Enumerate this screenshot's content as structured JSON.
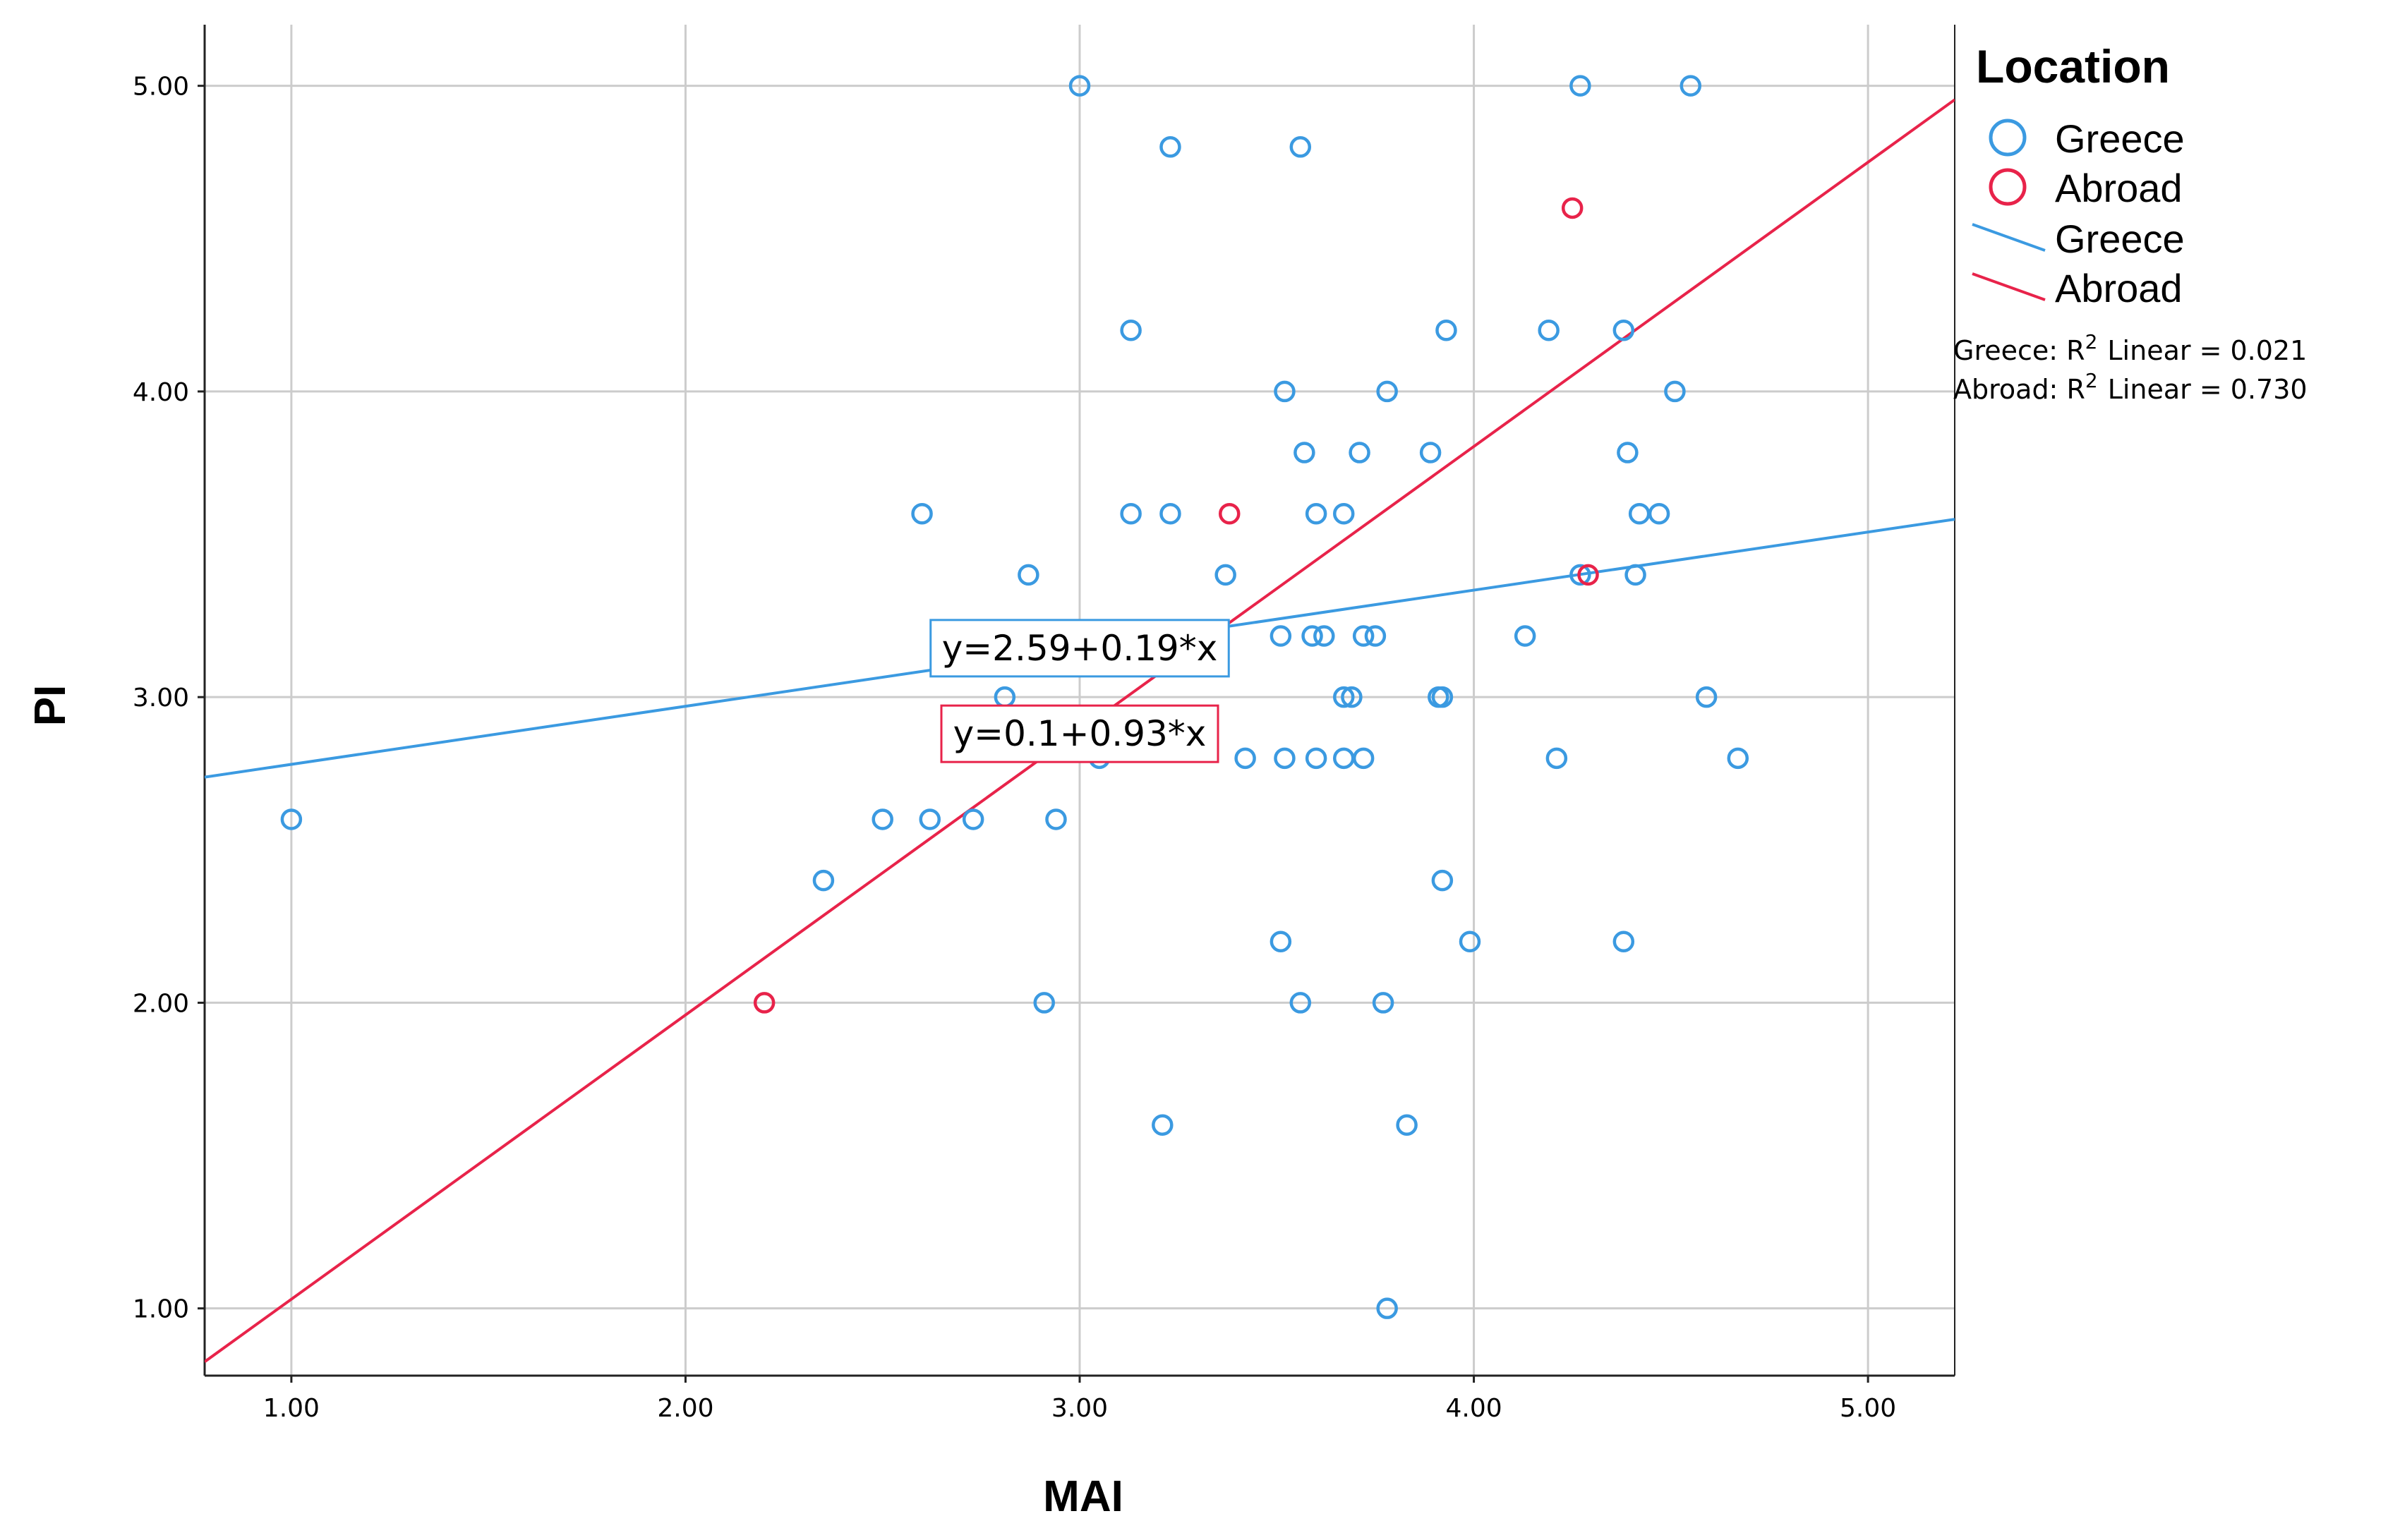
{
  "chart_data": {
    "type": "scatter",
    "xlabel": "MAI",
    "ylabel": "PI",
    "xlim": [
      0.78,
      5.22
    ],
    "ylim": [
      0.78,
      5.2
    ],
    "x_ticks": [
      1.0,
      2.0,
      3.0,
      4.0,
      5.0
    ],
    "y_ticks": [
      1.0,
      2.0,
      3.0,
      4.0,
      5.0
    ],
    "x_tick_labels": [
      "1.00",
      "2.00",
      "3.00",
      "4.00",
      "5.00"
    ],
    "y_tick_labels": [
      "1.00",
      "2.00",
      "3.00",
      "4.00",
      "5.00"
    ],
    "grid": true,
    "legend": {
      "title": "Location",
      "placement": "top-right",
      "point_labels": [
        "Greece",
        "Abroad"
      ],
      "line_labels": [
        "Greece",
        "Abroad"
      ]
    },
    "r2_labels": [
      "Greece: R",
      "Linear = 0.021",
      "Abroad: R",
      "Linear = 0.730"
    ],
    "r2_superscript": "2",
    "series": [
      {
        "name": "Greece",
        "color": "#3b9ae1",
        "points": [
          [
            1.0,
            2.6
          ],
          [
            2.35,
            2.4
          ],
          [
            2.5,
            2.6
          ],
          [
            2.6,
            3.6
          ],
          [
            2.62,
            2.6
          ],
          [
            2.73,
            2.6
          ],
          [
            2.81,
            3.0
          ],
          [
            2.87,
            3.4
          ],
          [
            2.91,
            2.0
          ],
          [
            2.94,
            2.6
          ],
          [
            3.0,
            5.0
          ],
          [
            3.05,
            2.8
          ],
          [
            3.13,
            4.2
          ],
          [
            3.13,
            3.6
          ],
          [
            3.21,
            1.6
          ],
          [
            3.23,
            4.8
          ],
          [
            3.23,
            3.6
          ],
          [
            3.37,
            3.4
          ],
          [
            3.42,
            2.8
          ],
          [
            3.51,
            3.2
          ],
          [
            3.51,
            2.2
          ],
          [
            3.52,
            4.0
          ],
          [
            3.52,
            2.8
          ],
          [
            3.56,
            4.8
          ],
          [
            3.56,
            2.0
          ],
          [
            3.57,
            3.8
          ],
          [
            3.59,
            3.2
          ],
          [
            3.6,
            3.6
          ],
          [
            3.6,
            2.8
          ],
          [
            3.62,
            3.2
          ],
          [
            3.67,
            3.6
          ],
          [
            3.67,
            3.0
          ],
          [
            3.67,
            2.8
          ],
          [
            3.69,
            3.0
          ],
          [
            3.71,
            3.8
          ],
          [
            3.72,
            3.2
          ],
          [
            3.72,
            2.8
          ],
          [
            3.75,
            3.2
          ],
          [
            3.77,
            2.0
          ],
          [
            3.78,
            4.0
          ],
          [
            3.78,
            1.0
          ],
          [
            3.83,
            1.6
          ],
          [
            3.89,
            3.8
          ],
          [
            3.91,
            3.0
          ],
          [
            3.92,
            3.0
          ],
          [
            3.92,
            2.4
          ],
          [
            3.93,
            4.2
          ],
          [
            3.99,
            2.2
          ],
          [
            4.13,
            3.2
          ],
          [
            4.19,
            4.2
          ],
          [
            4.21,
            2.8
          ],
          [
            4.27,
            5.0
          ],
          [
            4.27,
            3.4
          ],
          [
            4.38,
            4.2
          ],
          [
            4.38,
            2.2
          ],
          [
            4.39,
            3.8
          ],
          [
            4.41,
            3.4
          ],
          [
            4.42,
            3.6
          ],
          [
            4.47,
            3.6
          ],
          [
            4.51,
            4.0
          ],
          [
            4.55,
            5.0
          ],
          [
            4.59,
            3.0
          ],
          [
            4.67,
            2.8
          ]
        ],
        "fit": {
          "intercept": 2.59,
          "slope": 0.19,
          "label": "y=2.59+0.19*x",
          "label_x": 3.0,
          "label_y": 3.16
        }
      },
      {
        "name": "Abroad",
        "color": "#e8234a",
        "points": [
          [
            2.2,
            2.0
          ],
          [
            3.38,
            3.6
          ],
          [
            4.25,
            4.6
          ],
          [
            4.29,
            3.4
          ]
        ],
        "fit": {
          "intercept": 0.1,
          "slope": 0.93,
          "label": "y=0.1+0.93*x",
          "label_x": 3.0,
          "label_y": 2.88
        }
      }
    ]
  }
}
